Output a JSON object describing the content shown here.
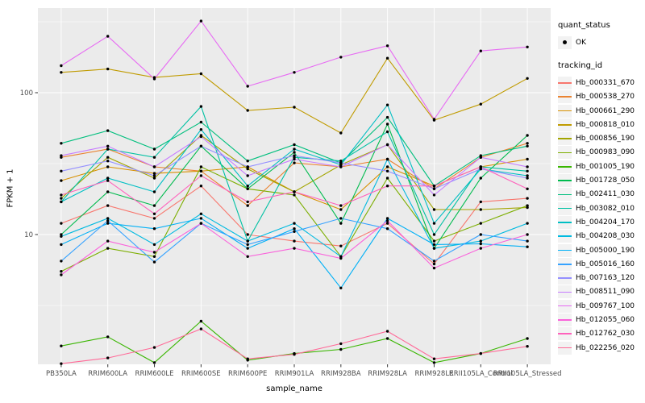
{
  "chart_data": {
    "type": "line",
    "title": "",
    "xlabel": "sample_name",
    "ylabel": "FPKM + 1",
    "y_scale": "log10",
    "ylim": [
      1.2,
      395
    ],
    "y_major_breaks": [
      10,
      100
    ],
    "y_minor_breaks": [
      3.162,
      31.62,
      316.2
    ],
    "grid": true,
    "legend_position": "right",
    "panel_bg": "#EBEBEB",
    "grid_color": "#FFFFFF",
    "point_color": "#000000",
    "tick_label_color": "#4D4D4D",
    "categories": [
      "PB350LA",
      "RRIM600LA",
      "RRIM600LE",
      "RRIM600SE",
      "RRIM600PE",
      "RRIM901LA",
      "RRIM928BA",
      "RRIM928LA",
      "RRIM928LE",
      "RRII105LA_Control",
      "RRII105LA_Stressed"
    ],
    "series": [
      {
        "name": "Hb_000331_670",
        "color": "#F8766D",
        "values": [
          12,
          16,
          13,
          22,
          10,
          9,
          8.3,
          12,
          6.2,
          17,
          18
        ]
      },
      {
        "name": "Hb_000538_270",
        "color": "#EA8331",
        "values": [
          35,
          40,
          30,
          28,
          16,
          32,
          30,
          34,
          21,
          35,
          44
        ]
      },
      {
        "name": "Hb_000661_290",
        "color": "#D89000",
        "values": [
          24,
          30,
          27,
          28,
          30,
          20,
          15,
          30,
          22,
          30,
          34
        ]
      },
      {
        "name": "Hb_000818_010",
        "color": "#C09B00",
        "values": [
          139,
          147,
          128,
          136,
          75,
          79,
          52,
          175,
          64,
          83,
          126
        ]
      },
      {
        "name": "Hb_000856_190",
        "color": "#A3A500",
        "values": [
          18,
          35,
          25,
          50,
          29,
          20,
          31,
          43,
          15,
          15,
          15.5
        ]
      },
      {
        "name": "Hb_000983_090",
        "color": "#7CAE00",
        "values": [
          5.5,
          8,
          7,
          30,
          21,
          19,
          7,
          25,
          9,
          12,
          16
        ]
      },
      {
        "name": "Hb_001005_190",
        "color": "#39B600",
        "values": [
          1.64,
          1.9,
          1.25,
          2.45,
          1.3,
          1.45,
          1.55,
          1.85,
          1.25,
          1.45,
          1.85
        ]
      },
      {
        "name": "Hb_001728_050",
        "color": "#00BB4E",
        "values": [
          10,
          20,
          16,
          42,
          21,
          38,
          12,
          60,
          8,
          25,
          50
        ]
      },
      {
        "name": "Hb_002411_030",
        "color": "#00BF7D",
        "values": [
          44,
          54,
          40,
          62,
          33,
          43,
          32,
          67,
          22,
          36,
          42
        ]
      },
      {
        "name": "Hb_003082_010",
        "color": "#00C1A3",
        "values": [
          17,
          40,
          35,
          80,
          9,
          35,
          33,
          53,
          10,
          30,
          28
        ]
      },
      {
        "name": "Hb_004204_170",
        "color": "#00BFC4",
        "values": [
          17,
          25,
          20,
          55,
          22,
          40,
          31,
          82,
          12,
          29,
          26
        ]
      },
      {
        "name": "Hb_004208_030",
        "color": "#00BAE0",
        "values": [
          9.7,
          13,
          8.5,
          14,
          9,
          12,
          7,
          34,
          8,
          9,
          12
        ]
      },
      {
        "name": "Hb_005000_190",
        "color": "#00B0F6",
        "values": [
          8.5,
          12,
          11,
          13,
          8,
          11,
          4.2,
          13,
          8.5,
          8.6,
          8.2
        ]
      },
      {
        "name": "Hb_005016_160",
        "color": "#35A2FF",
        "values": [
          6.5,
          12.5,
          6.4,
          12,
          8.5,
          10.5,
          13,
          11,
          6.5,
          10,
          9
        ]
      },
      {
        "name": "Hb_007163_120",
        "color": "#9590FF",
        "values": [
          28,
          33,
          26,
          42,
          30,
          36,
          32,
          28,
          21,
          29,
          25
        ]
      },
      {
        "name": "Hb_008511_090",
        "color": "#C77CFF",
        "values": [
          36,
          42,
          30,
          49,
          26,
          34,
          30,
          43,
          19,
          35,
          30
        ]
      },
      {
        "name": "Hb_009767_100",
        "color": "#E76BF3",
        "values": [
          155,
          250,
          125,
          320,
          111,
          139,
          178,
          214,
          65,
          197,
          210
        ]
      },
      {
        "name": "Hb_012055_060",
        "color": "#FA62DB",
        "values": [
          5.2,
          9,
          7.5,
          12,
          7,
          8,
          6.8,
          12.5,
          5.8,
          8,
          10
        ]
      },
      {
        "name": "Hb_012762_030",
        "color": "#FF62BC",
        "values": [
          19,
          24,
          14,
          26,
          17,
          20,
          16,
          22,
          22,
          30,
          21
        ]
      },
      {
        "name": "Hb_022256_020",
        "color": "#FF6A98",
        "values": [
          1.23,
          1.35,
          1.6,
          2.16,
          1.33,
          1.43,
          1.7,
          2.08,
          1.33,
          1.45,
          1.63
        ]
      }
    ]
  },
  "legend": {
    "quant_status_title": "quant_status",
    "quant_status_items": [
      {
        "label": "OK",
        "marker": "point-icon"
      }
    ],
    "tracking_id_title": "tracking_id",
    "key_bg": "#F2F2F2"
  }
}
